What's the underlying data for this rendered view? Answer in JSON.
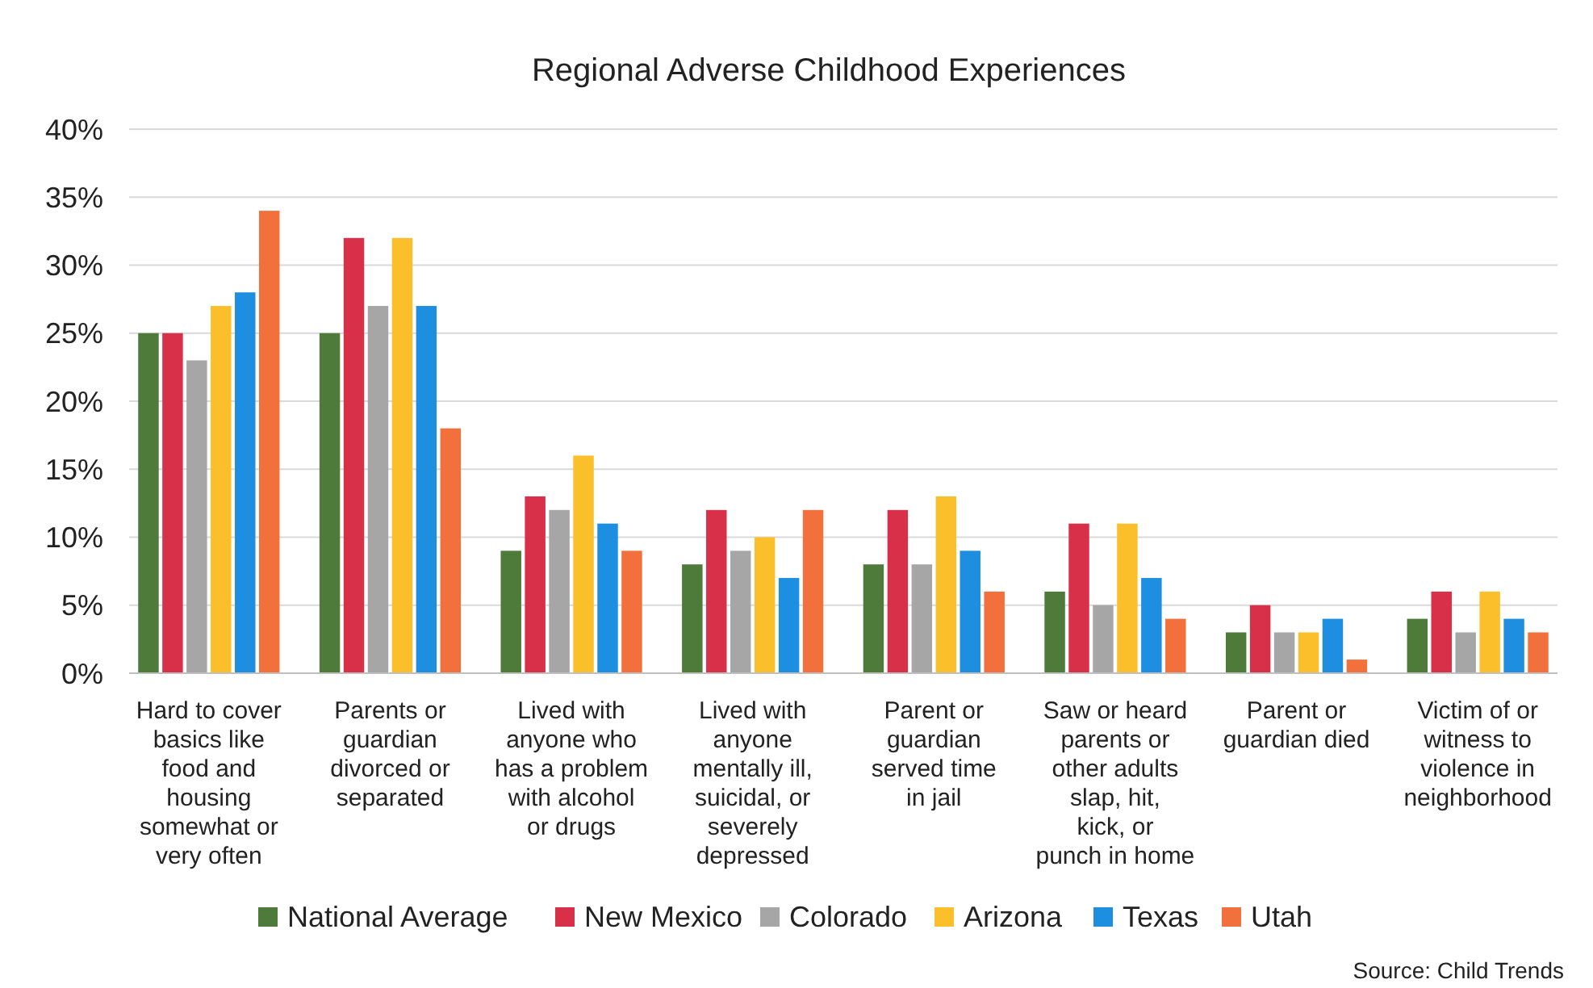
{
  "chart_data": {
    "type": "bar",
    "title": "Regional Adverse Childhood Experiences",
    "categories": [
      "Hard to cover basics like food and housing somewhat or very often",
      "Parents or guardian divorced or separated",
      "Lived with anyone who has a problem with alcohol or drugs",
      "Lived with anyone mentally ill, suicidal, or severely depressed",
      "Parent or guardian served time in jail",
      "Saw or heard parents or other adults slap, hit, kick, or punch in home",
      "Parent or guardian died",
      "Victim of or witness to violence in neighborhood"
    ],
    "series": [
      {
        "name": "National Average",
        "color": "#4e7a3a",
        "values": [
          25,
          25,
          9,
          8,
          8,
          6,
          3,
          4
        ]
      },
      {
        "name": "New Mexico",
        "color": "#d9304a",
        "values": [
          25,
          32,
          13,
          12,
          12,
          11,
          5,
          6
        ]
      },
      {
        "name": "Colorado",
        "color": "#a6a6a6",
        "values": [
          23,
          27,
          12,
          9,
          8,
          5,
          3,
          3
        ]
      },
      {
        "name": "Arizona",
        "color": "#fbbf2c",
        "values": [
          27,
          32,
          16,
          10,
          13,
          11,
          3,
          6
        ]
      },
      {
        "name": "Texas",
        "color": "#1e8ee0",
        "values": [
          28,
          27,
          11,
          7,
          9,
          7,
          4,
          4
        ]
      },
      {
        "name": "Utah",
        "color": "#f2703c",
        "values": [
          34,
          18,
          9,
          12,
          6,
          4,
          1,
          3
        ]
      }
    ],
    "ylim": [
      0,
      40
    ],
    "yticks": [
      {
        "value": 0,
        "label": "0%"
      },
      {
        "value": 5,
        "label": "5%"
      },
      {
        "value": 10,
        "label": "10%"
      },
      {
        "value": 15,
        "label": "15%"
      },
      {
        "value": 20,
        "label": "20%"
      },
      {
        "value": 25,
        "label": "25%"
      },
      {
        "value": 30,
        "label": "30%"
      },
      {
        "value": 35,
        "label": "35%"
      },
      {
        "value": 40,
        "label": "40%"
      }
    ],
    "grid": "y",
    "legend": "bottom",
    "annotations": [
      "Source: Child Trends"
    ]
  }
}
